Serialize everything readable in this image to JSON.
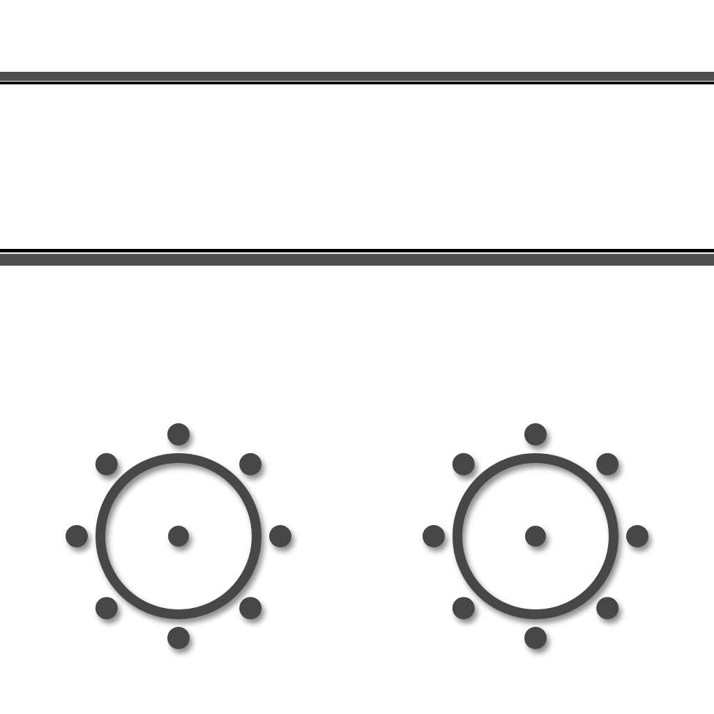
{
  "colors": {
    "background": "#ffffff",
    "band_gray": "#505050",
    "band_black": "#000000",
    "knob": "#474747",
    "shadow": "#9a9a9a"
  },
  "knobs": [
    {
      "name": "left-knob",
      "dot_count": 8,
      "has_center_dot": true
    },
    {
      "name": "right-knob",
      "dot_count": 8,
      "has_center_dot": true
    }
  ]
}
